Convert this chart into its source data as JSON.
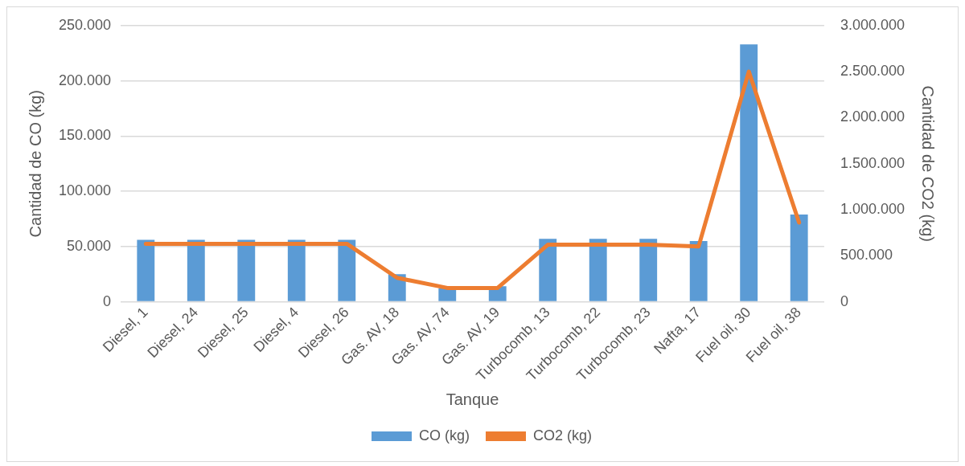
{
  "chart_data": {
    "type": "bar",
    "xlabel": "Tanque",
    "ylabel": "Cantidad de CO (kg)",
    "y2label": "Cantidad de CO2 (kg)",
    "categories": [
      "Diesel, 1",
      "Diesel, 24",
      "Diesel, 25",
      "Diesel, 4",
      "Diesel, 26",
      "Gas. AV, 18",
      "Gas. AV, 74",
      "Gas. AV, 19",
      "Turbocomb, 13",
      "Turbocomb, 22",
      "Turbocomb, 23",
      "Nafta, 17",
      "Fuel oil, 30",
      "Fuel oil, 38"
    ],
    "series": [
      {
        "name": "CO (kg)",
        "color": "#5b9bd5",
        "values": [
          56000,
          56000,
          56000,
          56000,
          56000,
          25000,
          12000,
          14000,
          57000,
          57000,
          57000,
          55000,
          233000,
          79000
        ]
      },
      {
        "name": "CO2 (kg)",
        "type": "line",
        "axis": "y2",
        "color": "#ed7d31",
        "values": [
          630000,
          630000,
          630000,
          630000,
          630000,
          260000,
          150000,
          150000,
          620000,
          620000,
          620000,
          600000,
          2500000,
          860000
        ]
      }
    ],
    "ylim": [
      0,
      250000
    ],
    "yticks": [
      {
        "value": 0,
        "label": "0"
      },
      {
        "value": 50000,
        "label": "50.000"
      },
      {
        "value": 100000,
        "label": "100.000"
      },
      {
        "value": 150000,
        "label": "150.000"
      },
      {
        "value": 200000,
        "label": "200.000"
      },
      {
        "value": 250000,
        "label": "250.000"
      }
    ],
    "y2lim": [
      0,
      3000000
    ],
    "y2ticks": [
      {
        "value": 0,
        "label": "0"
      },
      {
        "value": 500000,
        "label": "500.000"
      },
      {
        "value": 1000000,
        "label": "1.000.000"
      },
      {
        "value": 1500000,
        "label": "1.500.000"
      },
      {
        "value": 2000000,
        "label": "2.000.000"
      },
      {
        "value": 2500000,
        "label": "2.500.000"
      },
      {
        "value": 3000000,
        "label": "3.000.000"
      }
    ],
    "grid": "y",
    "legend": "bottom",
    "marker": "none",
    "line_style": "solid"
  }
}
